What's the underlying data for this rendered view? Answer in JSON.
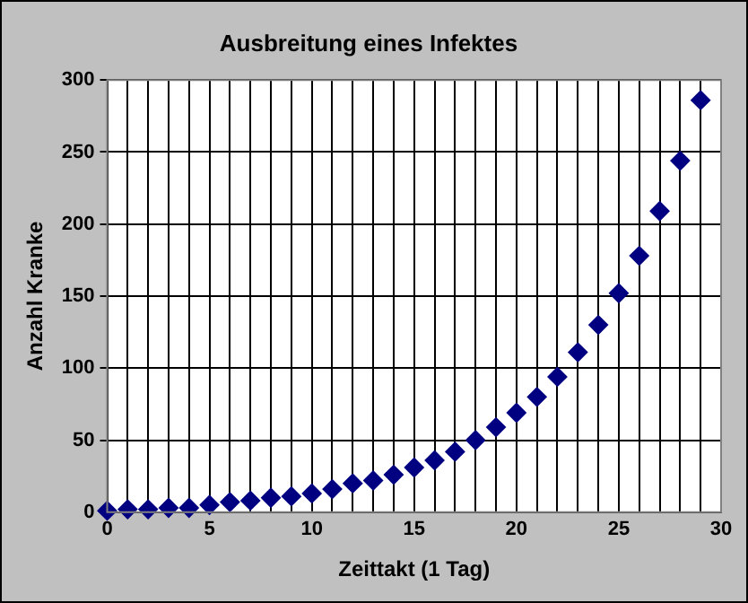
{
  "chart_data": {
    "type": "scatter",
    "title": "Ausbreitung eines Infektes",
    "xlabel": "Zeittakt (1 Tag)",
    "ylabel": "Anzahl Kranke",
    "x": [
      0,
      1,
      2,
      3,
      4,
      5,
      6,
      7,
      8,
      9,
      10,
      11,
      12,
      13,
      14,
      15,
      16,
      17,
      18,
      19,
      20,
      21,
      22,
      23,
      24,
      25,
      26,
      27,
      28,
      29
    ],
    "series": [
      {
        "color": "#000080",
        "values": [
          1,
          2,
          2,
          3,
          3,
          5,
          7,
          8,
          10,
          11,
          13,
          16,
          20,
          22,
          26,
          31,
          36,
          42,
          50,
          59,
          69,
          80,
          94,
          111,
          130,
          152,
          178,
          209,
          244,
          286
        ]
      }
    ],
    "xlim": [
      0,
      30
    ],
    "xticks": [
      0,
      {
        "value": 1,
        "label": null
      },
      {
        "value": 2,
        "label": null
      },
      {
        "value": 3,
        "label": null
      },
      {
        "value": 4,
        "label": null
      },
      5,
      {
        "value": 6,
        "label": null
      },
      {
        "value": 7,
        "label": null
      },
      {
        "value": 8,
        "label": null
      },
      {
        "value": 9,
        "label": null
      },
      10,
      {
        "value": 11,
        "label": null
      },
      {
        "value": 12,
        "label": null
      },
      {
        "value": 13,
        "label": null
      },
      {
        "value": 14,
        "label": null
      },
      15,
      {
        "value": 16,
        "label": null
      },
      {
        "value": 17,
        "label": null
      },
      {
        "value": 18,
        "label": null
      },
      {
        "value": 19,
        "label": null
      },
      20,
      {
        "value": 21,
        "label": null
      },
      {
        "value": 22,
        "label": null
      },
      {
        "value": 23,
        "label": null
      },
      {
        "value": 24,
        "label": null
      },
      25,
      {
        "value": 26,
        "label": null
      },
      {
        "value": 27,
        "label": null
      },
      {
        "value": 28,
        "label": null
      },
      {
        "value": 29,
        "label": null
      },
      30
    ],
    "ylim": [
      0,
      300
    ],
    "yticks": [
      0,
      50,
      100,
      150,
      200,
      250,
      300
    ],
    "grid": true,
    "legend": false,
    "marker": "diamond"
  }
}
